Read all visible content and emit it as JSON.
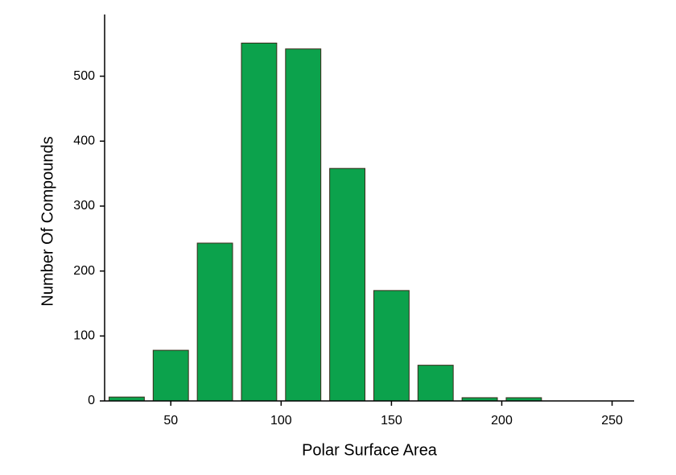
{
  "chart_data": {
    "type": "histogram",
    "x_label": "Polar Surface Area",
    "y_label": "Number Of Compounds",
    "bins": [
      20,
      40,
      60,
      80,
      100,
      120,
      140,
      160,
      180,
      200,
      220
    ],
    "values": [
      6,
      78,
      243,
      551,
      542,
      358,
      170,
      55,
      5,
      5
    ],
    "color": "#0ca24c",
    "edge_color": "#3a2a1a",
    "xlim": [
      20,
      260
    ],
    "xticks": [
      50,
      100,
      150,
      200,
      250
    ],
    "ylim": [
      0,
      595
    ],
    "yticks": [
      0,
      100,
      200,
      300,
      400,
      500
    ]
  }
}
